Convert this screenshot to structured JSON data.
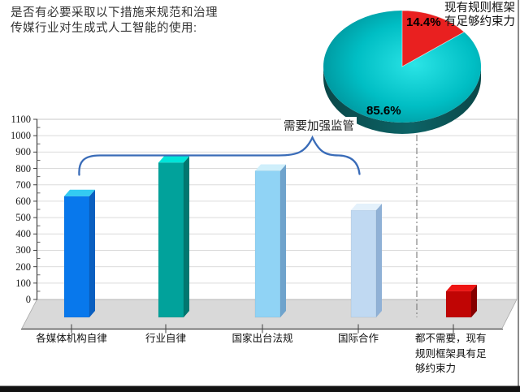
{
  "title": {
    "line1": "是否有必要采取以下措施来规范和治理",
    "line2": "传媒行业对生成式人工智能的使用:"
  },
  "chart_data": [
    {
      "type": "bar",
      "title": "",
      "xlabel": "",
      "ylabel": "",
      "categories": [
        "各媒体机构自律",
        "行业自律",
        "国家出台法规",
        "国际合作",
        "都不需要，现有规则框架具有足够约束力"
      ],
      "categories_display": [
        [
          "各媒体机构自律"
        ],
        [
          "行业自律"
        ],
        [
          "国家出台法规"
        ],
        [
          "国际合作"
        ],
        [
          "都不需要，现有",
          "规则框架具有足",
          "够约束力"
        ]
      ],
      "values": [
        670,
        875,
        825,
        585,
        90
      ],
      "ylim": [
        0,
        1100
      ],
      "ytick_step": 100,
      "ytick_labels": [
        "0",
        "100",
        "200",
        "300",
        "400",
        "500",
        "600",
        "700",
        "800",
        "900",
        "1000",
        "1100"
      ],
      "grid": true,
      "legend": "none",
      "annotation": "需要加强监管",
      "annotation_covers": [
        "各媒体机构自律",
        "行业自律",
        "国家出台法规",
        "国际合作"
      ],
      "bar_colors": [
        {
          "front": "#0878EC",
          "top": "#33CBF2",
          "side": "#0A5FC0"
        },
        {
          "front": "#01A29B",
          "top": "#00E4D9",
          "side": "#017770"
        },
        {
          "front": "#90D3F5",
          "top": "#CFEFFB",
          "side": "#6FA3CC"
        },
        {
          "front": "#C0D9F2",
          "top": "#E4F1FB",
          "side": "#90B1D6"
        },
        {
          "front": "#C00504",
          "top": "#EE1412",
          "side": "#850000"
        }
      ]
    },
    {
      "type": "pie",
      "slices": [
        {
          "label": "85.6%",
          "value": 85.6
        },
        {
          "label": "14.4%",
          "value": 14.4
        }
      ],
      "callout": {
        "line1": "现有规则框架",
        "line2": "有足够约束力"
      },
      "colors": {
        "teal_center": "#2BE4E6",
        "teal_mid": "#00BEC4",
        "teal_edge": "#008A92",
        "rim_dark": "#0A4748",
        "rim_mid": "#0C6366",
        "red": "#E92020"
      }
    }
  ],
  "styles": {
    "brace_color": "#3A6CB8",
    "floor_color": "#D9D9D9",
    "grid_color": "#DBDBDB",
    "axis_color": "#404040",
    "separator_color": "#7A7A7A",
    "right_border_color": "#8A8A8A",
    "bottom_strip_color": "#121212"
  }
}
